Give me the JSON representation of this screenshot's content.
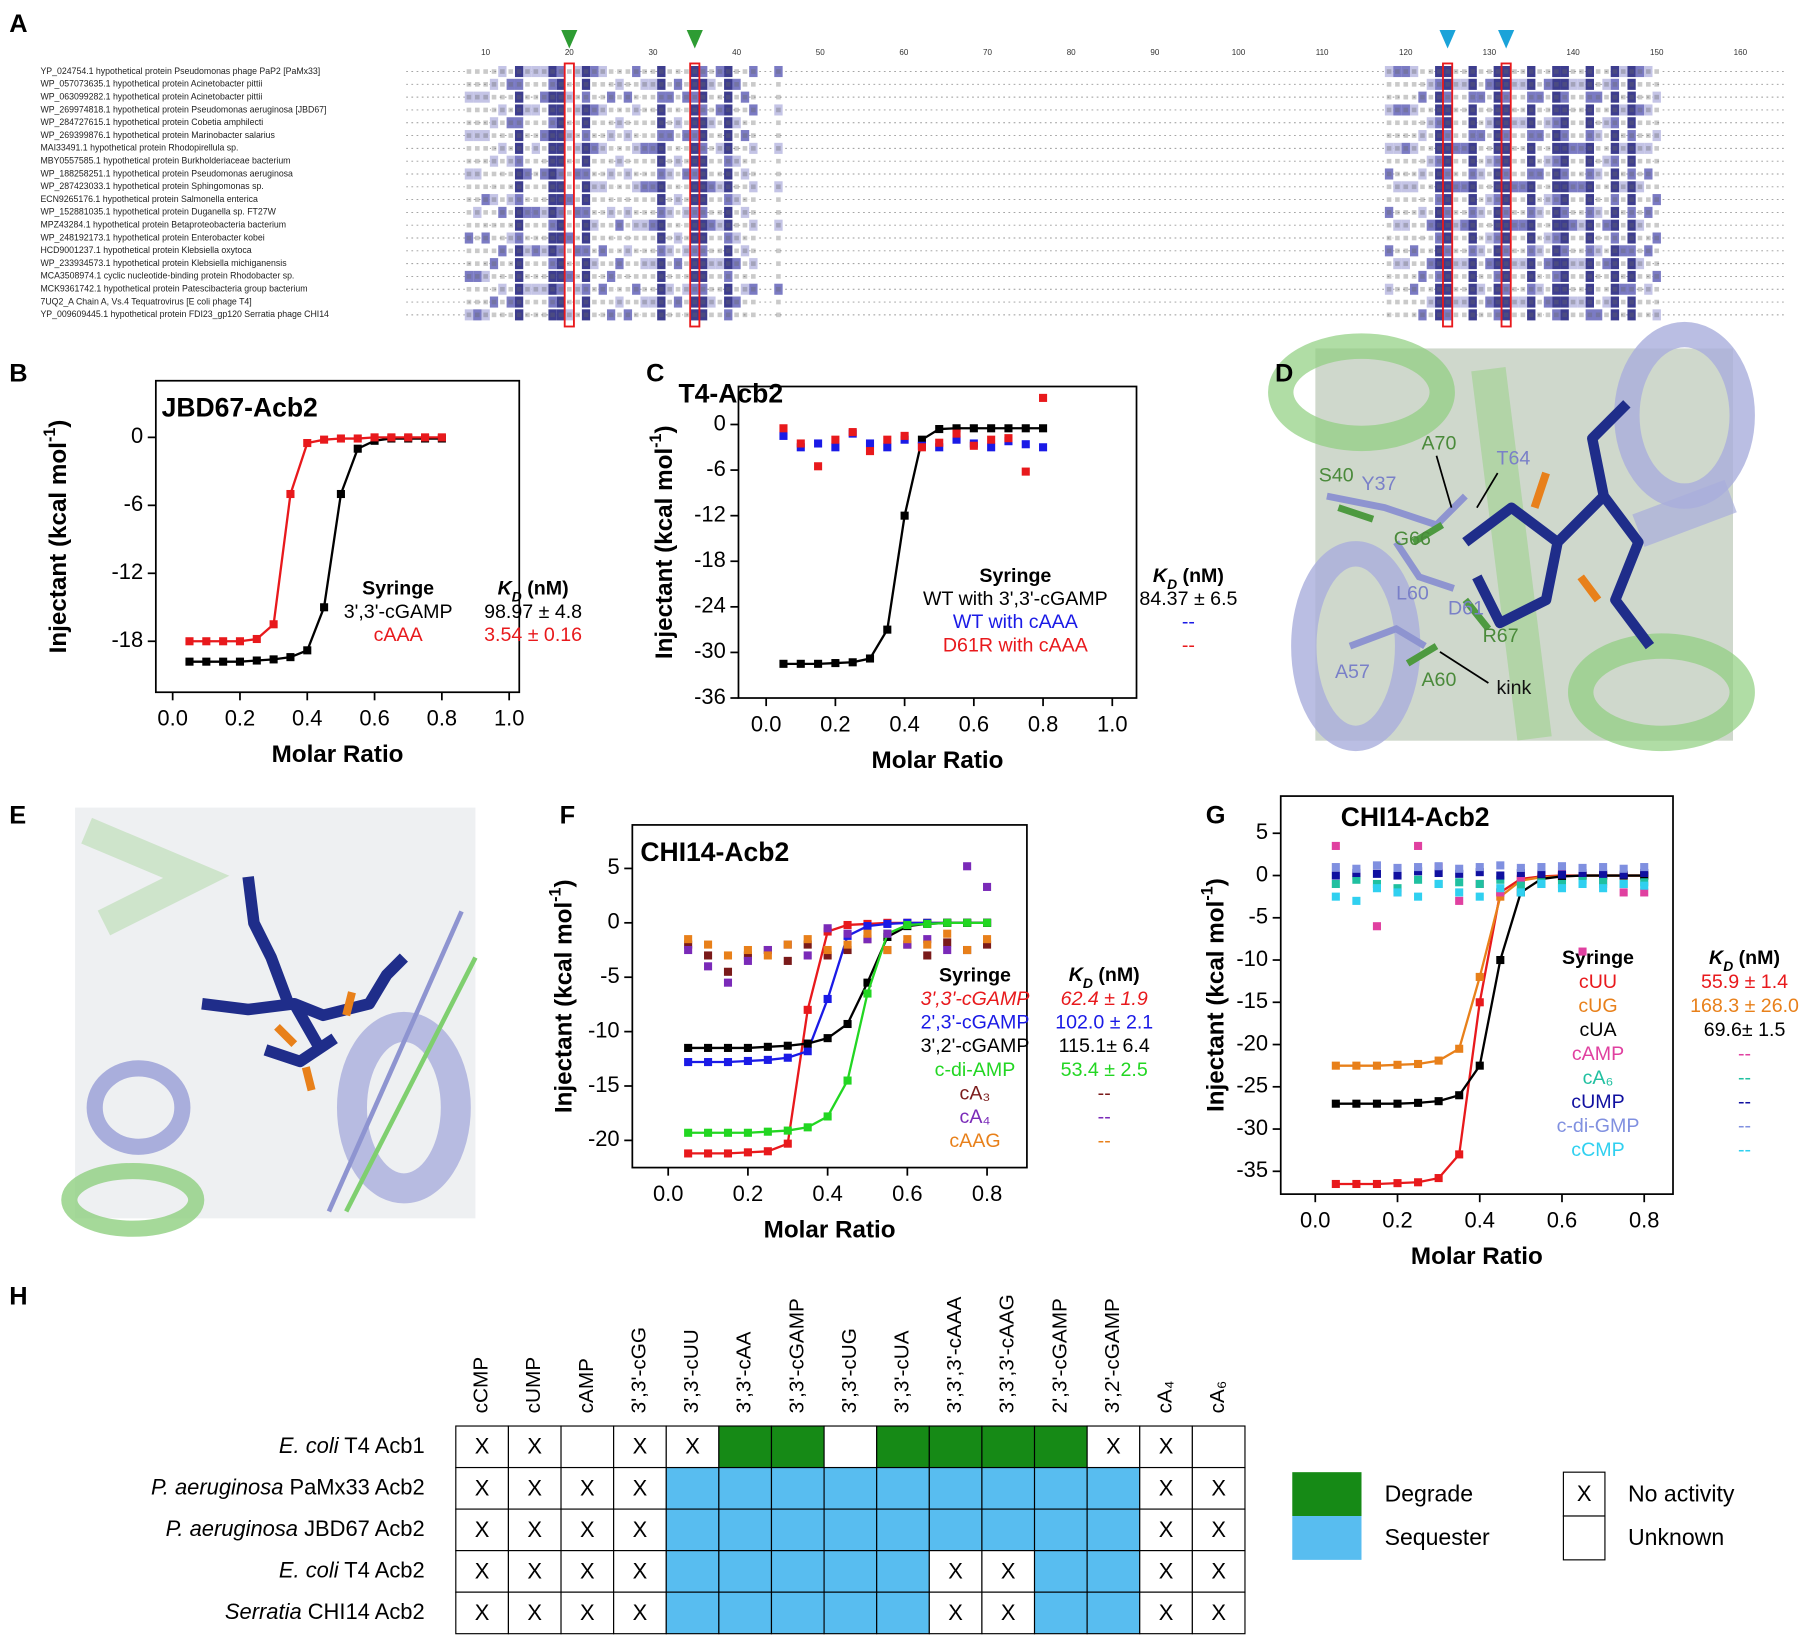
{
  "panels": [
    "A",
    "B",
    "C",
    "D",
    "E",
    "F",
    "G",
    "H"
  ],
  "alignment": {
    "ruler": [
      10,
      20,
      30,
      40,
      50,
      60,
      70,
      80,
      90,
      100,
      110,
      120,
      130,
      140,
      150,
      160
    ],
    "names": [
      "YP_024754.1 hypothetical protein Pseudomonas phage PaP2 [PaMx33]",
      "WP_057073635.1 hypothetical protein Acinetobacter pittii",
      "WP_063099282.1 hypothetical protein Acinetobacter pittii",
      "WP_269974818.1 hypothetical protein Pseudomonas aeruginosa [JBD67]",
      "WP_284727615.1 hypothetical protein Cobetia amphilecti",
      "WP_269399876.1 hypothetical protein Marinobacter salarius",
      "MAI33491.1 hypothetical protein Rhodopirellula sp.",
      "MBY0557585.1 hypothetical protein Burkholderiaceae bacterium",
      "WP_188258251.1 hypothetical protein Pseudomonas aeruginosa",
      "WP_287423033.1 hypothetical protein Sphingomonas sp.",
      "ECN9265176.1 hypothetical protein Salmonella enterica",
      "WP_152881035.1 hypothetical protein Duganella sp. FT27W",
      "MPZ43284.1 hypothetical protein Betaproteobacteria bacterium",
      "WP_248192173.1 hypothetical protein Enterobacter kobei",
      "HCD9001237.1 hypothetical protein Klebsiella oxytoca",
      "WP_233934573.1 hypothetical protein Klebsiella michiganensis",
      "MCA3508974.1 cyclic nucleotide-binding protein Rhodobacter sp.",
      "MCK9361742.1 hypothetical protein Patescibacteria group bacterium",
      "7UQ2_A Chain A, Vs.4 Tequatrovirus [E coli phage T4]",
      "YP_009609445.1 hypothetical protein FDI23_gp120 Serratia phage CHI14"
    ]
  },
  "chart_data": [
    {
      "type": "scatter",
      "title": "JBD67-Acb2",
      "x_label": "Molar Ratio",
      "y_label": [
        "Injectant (kcal mol",
        "-1",
        ")"
      ],
      "xlim": [
        -0.05,
        1.03
      ],
      "ylim": [
        -22.5,
        5
      ],
      "xticks": [
        {
          "value": 0,
          "label": "0.0"
        },
        {
          "value": 0.2,
          "label": "0.2"
        },
        {
          "value": 0.4,
          "label": "0.4"
        },
        {
          "value": 0.6,
          "label": "0.6"
        },
        {
          "value": 0.8,
          "label": "0.8"
        },
        {
          "value": 1,
          "label": "1.0"
        }
      ],
      "yticks": [
        0,
        -6,
        -12,
        -18
      ],
      "legend_title": "Syringe",
      "kd_title": [
        "K",
        "D",
        " (nM)"
      ],
      "x": [
        0.05,
        0.1,
        0.15,
        0.2,
        0.25,
        0.3,
        0.35,
        0.4,
        0.45,
        0.5,
        0.55,
        0.6,
        0.65,
        0.7,
        0.75,
        0.8
      ],
      "series": [
        {
          "name": "3',3'-cGAMP",
          "kd": "98.97 ± 4.8",
          "color": "#000000",
          "fit": true,
          "values": [
            -19.8,
            -19.8,
            -19.8,
            -19.8,
            -19.7,
            -19.6,
            -19.4,
            -18.8,
            -15,
            -5,
            -1,
            -0.3,
            -0.1,
            -0.1,
            -0.1,
            -0.1
          ]
        },
        {
          "name": "cAAA",
          "kd": "3.54 ± 0.16",
          "color": "#e8191c",
          "fit": true,
          "values": [
            -18,
            -18,
            -18,
            -18,
            -17.8,
            -16.5,
            -5,
            -0.5,
            -0.2,
            -0.1,
            -0.1,
            0,
            0,
            0,
            0,
            0
          ]
        }
      ]
    },
    {
      "type": "scatter",
      "title": "T4-Acb2",
      "x_label": "Molar Ratio",
      "y_label": [
        "Injectant (kcal mol",
        "-1",
        ")"
      ],
      "xlim": [
        -0.08,
        1.07
      ],
      "ylim": [
        -36,
        5
      ],
      "xticks": [
        {
          "value": 0,
          "label": "0.0"
        },
        {
          "value": 0.2,
          "label": "0.2"
        },
        {
          "value": 0.4,
          "label": "0.4"
        },
        {
          "value": 0.6,
          "label": "0.6"
        },
        {
          "value": 0.8,
          "label": "0.8"
        },
        {
          "value": 1,
          "label": "1.0"
        }
      ],
      "yticks": [
        0,
        -6,
        -12,
        -18,
        -24,
        -30,
        -36
      ],
      "legend_title": "Syringe",
      "kd_title": [
        "K",
        "D",
        " (nM)"
      ],
      "x": [
        0.05,
        0.1,
        0.15,
        0.2,
        0.25,
        0.3,
        0.35,
        0.4,
        0.45,
        0.5,
        0.55,
        0.6,
        0.65,
        0.7,
        0.75,
        0.8
      ],
      "series": [
        {
          "name": "WT with 3',3'-cGAMP",
          "kd": "84.37 ± 6.5",
          "color": "#000000",
          "fit": true,
          "values": [
            -31.5,
            -31.5,
            -31.5,
            -31.4,
            -31.3,
            -30.8,
            -27,
            -12,
            -2,
            -0.6,
            -0.5,
            -0.5,
            -0.5,
            -0.5,
            -0.5,
            -0.5
          ]
        },
        {
          "name": "WT with cAAA",
          "kd": "--",
          "color": "#1a1ae6",
          "fit": false,
          "values": [
            -1.5,
            -3,
            -2.5,
            -3,
            -1.2,
            -2.5,
            -3,
            -2,
            -2.8,
            -3,
            -2,
            -2.5,
            -3,
            -2.2,
            -2.6,
            -3
          ]
        },
        {
          "name": "D61R with cAAA",
          "kd": "--",
          "color": "#e8191c",
          "fit": false,
          "values": [
            -0.5,
            -2.5,
            -5.5,
            -2,
            -1,
            -3.5,
            -2,
            -1.5,
            -3,
            -2.4,
            -1.2,
            -2.8,
            -2,
            -1.8,
            -6.2,
            3.5
          ]
        }
      ]
    },
    {
      "type": "scatter",
      "title": "CHI14-Acb2",
      "x_label": "Molar Ratio",
      "y_label": [
        "Injectant (kcal mol",
        "-1",
        ")"
      ],
      "xlim": [
        -0.09,
        0.9
      ],
      "ylim": [
        -22.5,
        9
      ],
      "xticks": [
        {
          "value": 0,
          "label": "0.0"
        },
        {
          "value": 0.2,
          "label": "0.2"
        },
        {
          "value": 0.4,
          "label": "0.4"
        },
        {
          "value": 0.6,
          "label": "0.6"
        },
        {
          "value": 0.8,
          "label": "0.8"
        }
      ],
      "yticks": [
        5,
        0,
        -5,
        -10,
        -15,
        -20
      ],
      "legend_title": "Syringe",
      "kd_title": [
        "K",
        "D",
        " (nM)"
      ],
      "x": [
        0.05,
        0.1,
        0.15,
        0.2,
        0.25,
        0.3,
        0.35,
        0.4,
        0.45,
        0.5,
        0.55,
        0.6,
        0.65,
        0.7,
        0.75,
        0.8
      ],
      "series": [
        {
          "name": "3',3'-cGAMP",
          "kd": "62.4 ± 1.9",
          "color": "#e8191c",
          "fit": true,
          "italic": true,
          "values": [
            -21.2,
            -21.2,
            -21.2,
            -21.1,
            -21,
            -20.3,
            -8,
            -0.8,
            -0.2,
            -0.1,
            0,
            0,
            0,
            0,
            0,
            0
          ]
        },
        {
          "name": "2',3'-cGAMP",
          "kd": "102.0 ± 2.1",
          "color": "#1a1ae6",
          "fit": true,
          "values": [
            -12.8,
            -12.8,
            -12.8,
            -12.7,
            -12.6,
            -12.4,
            -11.8,
            -7,
            -1.2,
            -0.3,
            -0.1,
            0,
            0,
            0,
            0,
            0
          ]
        },
        {
          "name": "3',2'-cGAMP",
          "kd": "115.1± 6.4",
          "color": "#000000",
          "fit": true,
          "values": [
            -11.5,
            -11.5,
            -11.5,
            -11.5,
            -11.4,
            -11.3,
            -11.1,
            -10.6,
            -9.3,
            -5.5,
            -1.3,
            -0.3,
            -0.1,
            0,
            0,
            0
          ]
        },
        {
          "name": "c-di-AMP",
          "kd": "53.4 ± 2.5",
          "color": "#22d622",
          "fit": true,
          "values": [
            -19.3,
            -19.3,
            -19.3,
            -19.3,
            -19.2,
            -19.1,
            -18.8,
            -17.8,
            -14.5,
            -6.5,
            -1,
            -0.2,
            -0.1,
            0,
            0,
            0
          ]
        },
        {
          "name": "cA₃",
          "kd": "--",
          "color": "#7a1a1a",
          "fit": false,
          "values": [
            -2,
            -3,
            -4.5,
            -3,
            -2.5,
            -3.5,
            -2,
            -3,
            -2.5,
            -1.5,
            -2.5,
            -2,
            -3,
            -1.8,
            -2.5,
            -2
          ]
        },
        {
          "name": "cA₄",
          "kd": "--",
          "color": "#7a2ab8",
          "fit": false,
          "values": [
            -2.5,
            -4,
            -5.5,
            -3.5,
            -2.5,
            -2,
            -3,
            -0.5,
            -1,
            -1.5,
            -1,
            -2,
            -1.5,
            -2.5,
            5.2,
            3.3
          ]
        },
        {
          "name": "cAAG",
          "kd": "--",
          "color": "#e8801a",
          "fit": false,
          "values": [
            -1.5,
            -2,
            -3,
            -2.5,
            -3,
            -2,
            -1.5,
            -2.5,
            -2,
            -1,
            -2.5,
            -1.5,
            -2,
            -1,
            -2.5,
            -1.5
          ]
        }
      ]
    },
    {
      "type": "scatter",
      "title": "CHI14-Acb2",
      "x_label": "Molar Ratio",
      "y_label": [
        "Injectant (kcal mol",
        "-1",
        ")"
      ],
      "xlim": [
        -0.084,
        0.87
      ],
      "ylim": [
        -37.7,
        9.4
      ],
      "xticks": [
        {
          "value": 0,
          "label": "0.0"
        },
        {
          "value": 0.2,
          "label": "0.2"
        },
        {
          "value": 0.4,
          "label": "0.4"
        },
        {
          "value": 0.6,
          "label": "0.6"
        },
        {
          "value": 0.8,
          "label": "0.8"
        }
      ],
      "yticks": [
        5,
        0,
        -5,
        -10,
        -15,
        -20,
        -25,
        -30,
        -35
      ],
      "legend_title": "Syringe",
      "kd_title": [
        "K",
        "D",
        " (nM)"
      ],
      "x": [
        0.05,
        0.1,
        0.15,
        0.2,
        0.25,
        0.3,
        0.35,
        0.4,
        0.45,
        0.5,
        0.55,
        0.6,
        0.65,
        0.7,
        0.75,
        0.8
      ],
      "series": [
        {
          "name": "cUU",
          "kd": "55.9 ± 1.4",
          "color": "#e8191c",
          "fit": true,
          "values": [
            -36.5,
            -36.5,
            -36.5,
            -36.4,
            -36.3,
            -35.8,
            -33,
            -15,
            -2,
            -0.4,
            -0.1,
            0,
            0,
            0,
            0,
            0
          ]
        },
        {
          "name": "cUG",
          "kd": "168.3 ± 26.0",
          "color": "#e8801a",
          "fit": true,
          "values": [
            -22.5,
            -22.5,
            -22.5,
            -22.4,
            -22.3,
            -21.9,
            -20.5,
            -12,
            -2.5,
            -0.6,
            -0.2,
            -0.1,
            0,
            0,
            0,
            0
          ]
        },
        {
          "name": "cUA",
          "kd": "69.6± 1.5",
          "color": "#000000",
          "fit": true,
          "values": [
            -27,
            -27,
            -27,
            -27,
            -26.9,
            -26.7,
            -26,
            -22.5,
            -10,
            -2,
            -0.4,
            -0.1,
            0,
            0,
            0,
            0
          ]
        },
        {
          "name": "cAMP",
          "kd": "--",
          "color": "#e040a0",
          "fit": false,
          "values": [
            3.5,
            0,
            -6,
            -2,
            3.5,
            1,
            -3,
            -1,
            -2,
            -0.5,
            -1,
            0.5,
            -9,
            -1,
            -2,
            -2
          ]
        },
        {
          "name": "cA₆",
          "kd": "--",
          "color": "#20c0a0",
          "fit": false,
          "values": [
            -1,
            -0.5,
            -1,
            -1.5,
            -0.5,
            -1,
            -0.8,
            -1,
            -0.5,
            -1.2,
            -0.8,
            -1,
            -0.5,
            -0.7,
            -1,
            -0.8
          ]
        },
        {
          "name": "cUMP",
          "kd": "--",
          "color": "#1010a0",
          "fit": false,
          "values": [
            0,
            0.3,
            0.2,
            0,
            0.5,
            0.3,
            0.2,
            0.4,
            0,
            0.3,
            0.2,
            0.1,
            0.3,
            0.2,
            0.1,
            0.3
          ]
        },
        {
          "name": "c-di-GMP",
          "kd": "--",
          "color": "#8090e0",
          "fit": false,
          "values": [
            1,
            0.8,
            1.2,
            0.9,
            1,
            1.1,
            0.8,
            1,
            1.2,
            0.9,
            1,
            1.1,
            0.9,
            1,
            0.8,
            1
          ]
        },
        {
          "name": "cCMP",
          "kd": "--",
          "color": "#30d0f0",
          "fit": false,
          "values": [
            -2.5,
            -3,
            -1.5,
            -2,
            -2.5,
            -1,
            -2,
            -2.5,
            -1.5,
            -2,
            -1,
            -1.5,
            -1,
            -1.5,
            -1,
            -1.2
          ]
        }
      ]
    }
  ],
  "structure_d": {
    "labels": [
      {
        "text": "S40",
        "color": "#4a8a3a"
      },
      {
        "text": "Y37",
        "color": "#7a80c8"
      },
      {
        "text": "A70",
        "color": "#4a8a3a"
      },
      {
        "text": "T64",
        "color": "#7a80c8"
      },
      {
        "text": "G66",
        "color": "#4a8a3a"
      },
      {
        "text": "L60",
        "color": "#7a80c8"
      },
      {
        "text": "D61",
        "color": "#7a80c8"
      },
      {
        "text": "R67",
        "color": "#4a8a3a"
      },
      {
        "text": "A57",
        "color": "#7a80c8"
      },
      {
        "text": "A60",
        "color": "#4a8a3a"
      },
      {
        "text": "kink",
        "color": "#111111"
      }
    ]
  },
  "table": {
    "columns": [
      "cCMP",
      "cUMP",
      "cAMP",
      "3',3'-cGG",
      "3',3'-cUU",
      "3',3'-cAA",
      "3',3'-cGAMP",
      "3',3'-cUG",
      "3',3'-cUA",
      "3',3',3'-cAAA",
      "3',3',3'-cAAG",
      "2',3'-cGAMP",
      "3',2'-cGAMP",
      "cA₄",
      "cA₆"
    ],
    "rows": [
      {
        "species": "E. coli",
        "strain": " T4 Acb1",
        "cells": [
          2,
          2,
          3,
          2,
          2,
          0,
          0,
          3,
          0,
          0,
          0,
          0,
          2,
          2,
          3
        ]
      },
      {
        "species": "P. aeruginosa",
        "strain": " PaMx33 Acb2",
        "cells": [
          2,
          2,
          2,
          2,
          1,
          1,
          1,
          1,
          1,
          1,
          1,
          1,
          1,
          2,
          2
        ]
      },
      {
        "species": "P. aeruginosa",
        "strain": " JBD67 Acb2",
        "cells": [
          2,
          2,
          2,
          2,
          1,
          1,
          1,
          1,
          1,
          1,
          1,
          1,
          1,
          2,
          2
        ]
      },
      {
        "species": "E. coli",
        "strain": " T4 Acb2",
        "cells": [
          2,
          2,
          2,
          2,
          1,
          1,
          1,
          1,
          1,
          2,
          2,
          1,
          1,
          2,
          2
        ]
      },
      {
        "species": "Serratia",
        "strain": " CHI14 Acb2",
        "cells": [
          2,
          2,
          2,
          2,
          1,
          1,
          1,
          1,
          1,
          2,
          2,
          1,
          1,
          2,
          2
        ]
      }
    ],
    "legend": [
      {
        "label": "Degrade",
        "fill": "#168a16"
      },
      {
        "label": "Sequester",
        "fill": "#58bdf0"
      },
      {
        "label": "No activity",
        "symbol": "X"
      },
      {
        "label": "Unknown"
      }
    ]
  }
}
